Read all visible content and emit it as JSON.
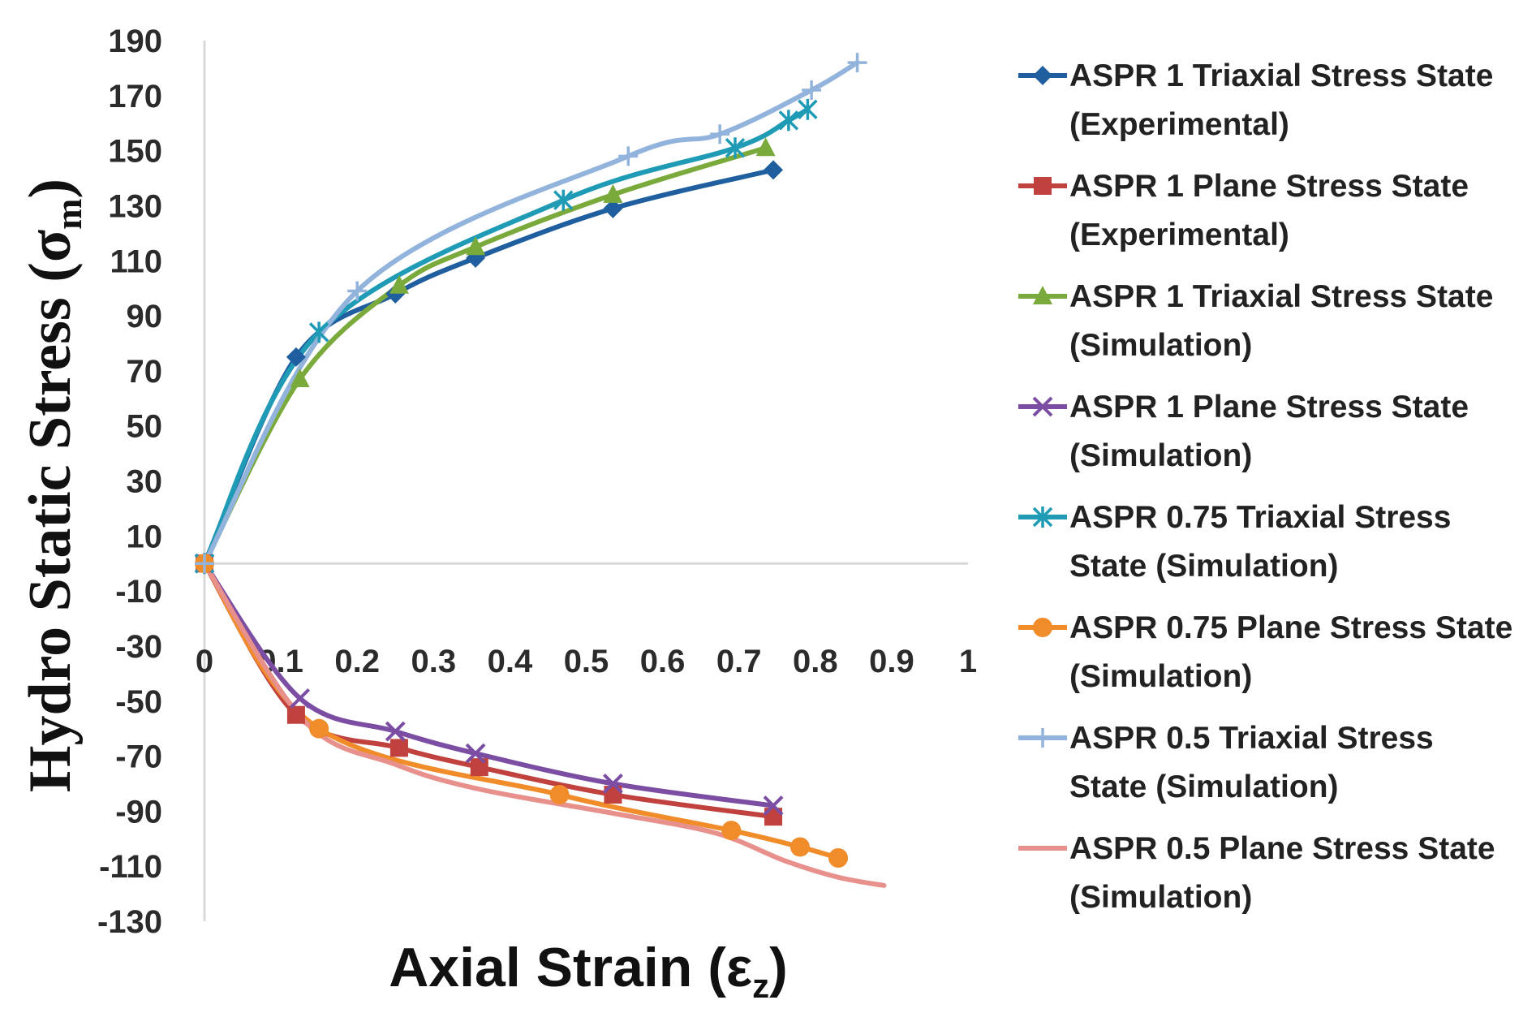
{
  "chart_data": {
    "type": "line",
    "title": "",
    "xlabel": "Axial Strain (εz)",
    "xlabel_main": "Axial Strain (ε",
    "xlabel_sub": "z",
    "xlabel_close": ")",
    "ylabel": "Hydro Static Stress (σm)",
    "ylabel_main": "Hydro Static Stress (σ",
    "ylabel_sub": "m",
    "ylabel_close": ")",
    "xlim": [
      0,
      1
    ],
    "ylim": [
      -130,
      190
    ],
    "xticks": [
      "0",
      "0.1",
      "0.2",
      "0.3",
      "0.4",
      "0.5",
      "0.6",
      "0.7",
      "0.8",
      "0.9",
      "1"
    ],
    "yticks": [
      "190",
      "170",
      "150",
      "130",
      "110",
      "90",
      "70",
      "50",
      "30",
      "10",
      "-10",
      "-30",
      "-50",
      "-70",
      "-90",
      "-110",
      "-130"
    ],
    "legend_position": "right",
    "series": [
      {
        "name": "ASPR 1 Triaxial Stress State (Experimental)",
        "legend_lines": [
          "ASPR 1 Triaxial Stress State",
          "(Experimental)"
        ],
        "color": "#1f5fa0",
        "marker": "diamond",
        "x": [
          0,
          0.12,
          0.25,
          0.355,
          0.535,
          0.745
        ],
        "y": [
          0,
          75,
          98,
          111,
          129,
          143
        ]
      },
      {
        "name": "ASPR 1 Plane Stress State (Experimental)",
        "legend_lines": [
          "ASPR 1 Plane Stress State",
          "(Experimental)"
        ],
        "color": "#c0413e",
        "marker": "square",
        "x": [
          0,
          0.12,
          0.255,
          0.36,
          0.535,
          0.745
        ],
        "y": [
          0,
          -55,
          -67,
          -74,
          -84,
          -92
        ]
      },
      {
        "name": "ASPR 1 Triaxial Stress State (Simulation)",
        "legend_lines": [
          "ASPR 1 Triaxial Stress State",
          "(Simulation)"
        ],
        "color": "#7aaa3c",
        "marker": "triangle",
        "x": [
          0,
          0.125,
          0.255,
          0.355,
          0.535,
          0.735
        ],
        "y": [
          0,
          67,
          101,
          115,
          134,
          151
        ]
      },
      {
        "name": "ASPR 1 Plane Stress State (Simulation)",
        "legend_lines": [
          "ASPR 1 Plane Stress State",
          "(Simulation)"
        ],
        "color": "#7b4ea3",
        "marker": "x",
        "x": [
          0,
          0.125,
          0.25,
          0.355,
          0.535,
          0.745
        ],
        "y": [
          0,
          -49,
          -61,
          -69,
          -80,
          -88
        ]
      },
      {
        "name": "ASPR 0.75 Triaxial Stress State (Simulation)",
        "legend_lines": [
          "ASPR 0.75 Triaxial Stress",
          "State (Simulation)"
        ],
        "color": "#1f9bb5",
        "marker": "asterisk",
        "x": [
          0,
          0.15,
          0.47,
          0.695,
          0.765,
          0.79
        ],
        "y": [
          0,
          84,
          132,
          151,
          161,
          165
        ]
      },
      {
        "name": "ASPR 0.75 Plane Stress State (Simulation)",
        "legend_lines": [
          "ASPR 0.75 Plane Stress State",
          "(Simulation)"
        ],
        "color": "#f08c2a",
        "marker": "circle",
        "x": [
          0,
          0.15,
          0.465,
          0.69,
          0.78,
          0.83
        ],
        "y": [
          0,
          -60,
          -84,
          -97,
          -103,
          -107
        ]
      },
      {
        "name": "ASPR 0.5 Triaxial Stress State (Simulation)",
        "legend_lines": [
          "ASPR 0.5 Triaxial Stress",
          "State (Simulation)"
        ],
        "color": "#92b4dc",
        "marker": "plus",
        "x": [
          0,
          0.2,
          0.555,
          0.675,
          0.795,
          0.855
        ],
        "y": [
          0,
          99,
          148,
          156,
          172,
          182
        ]
      },
      {
        "name": "ASPR 0.5 Plane Stress State (Simulation)",
        "legend_lines": [
          "ASPR 0.5 Plane Stress State",
          "(Simulation)"
        ],
        "color": "#e8908c",
        "marker": "none",
        "x": [
          0,
          0.13,
          0.25,
          0.36,
          0.54,
          0.67,
          0.76,
          0.83,
          0.89
        ],
        "y": [
          0,
          -57,
          -73,
          -82,
          -91,
          -98,
          -108,
          -114,
          -117
        ]
      }
    ]
  }
}
